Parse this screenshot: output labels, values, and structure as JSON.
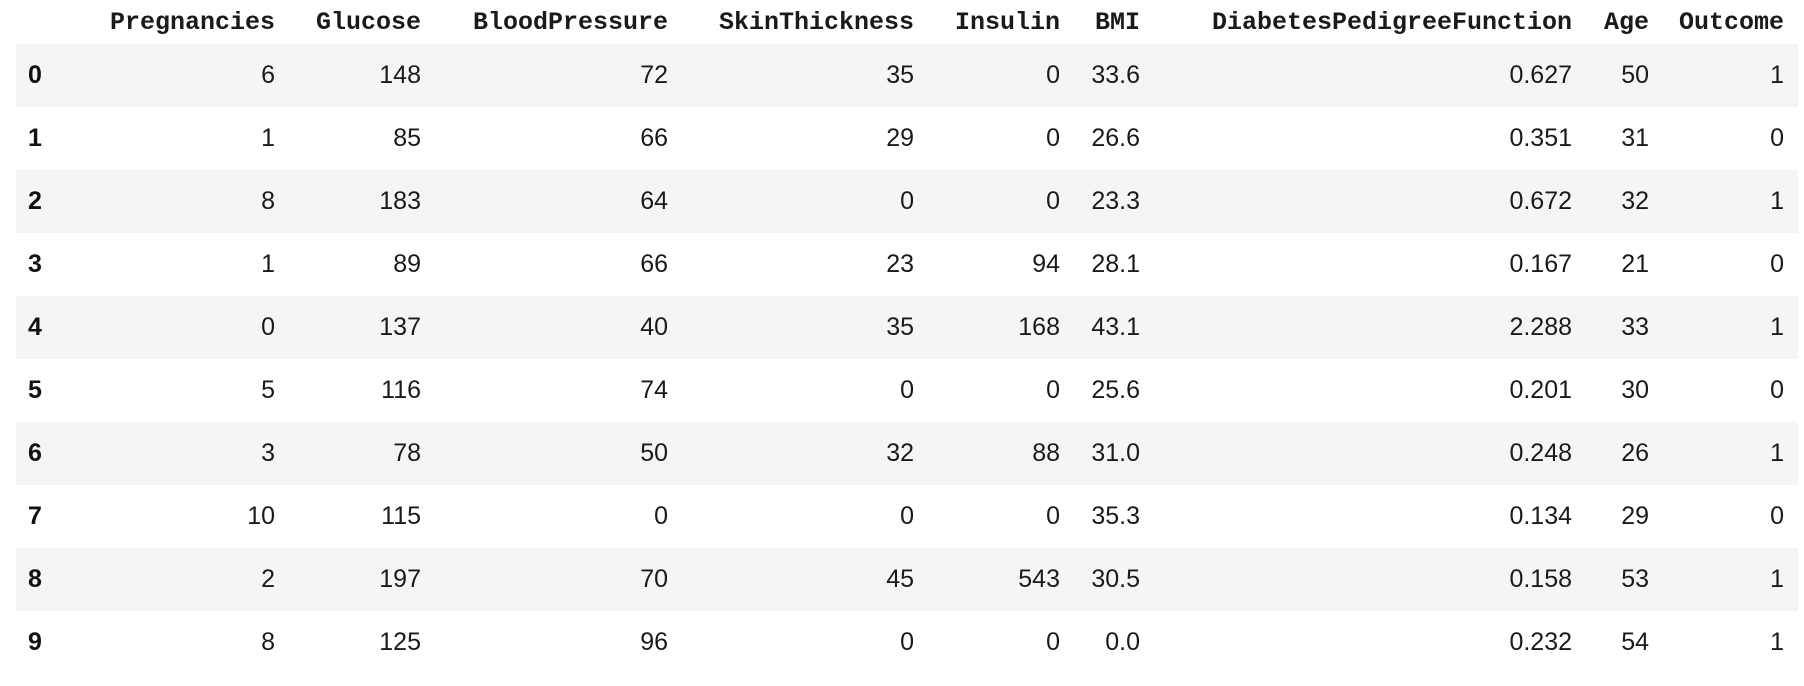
{
  "dataframe": {
    "index_header": "",
    "columns": [
      "Pregnancies",
      "Glucose",
      "BloodPressure",
      "SkinThickness",
      "Insulin",
      "BMI",
      "DiabetesPedigreeFunction",
      "Age",
      "Outcome"
    ],
    "rows": [
      {
        "index": "0",
        "values": [
          "6",
          "148",
          "72",
          "35",
          "0",
          "33.6",
          "0.627",
          "50",
          "1"
        ]
      },
      {
        "index": "1",
        "values": [
          "1",
          "85",
          "66",
          "29",
          "0",
          "26.6",
          "0.351",
          "31",
          "0"
        ]
      },
      {
        "index": "2",
        "values": [
          "8",
          "183",
          "64",
          "0",
          "0",
          "23.3",
          "0.672",
          "32",
          "1"
        ]
      },
      {
        "index": "3",
        "values": [
          "1",
          "89",
          "66",
          "23",
          "94",
          "28.1",
          "0.167",
          "21",
          "0"
        ]
      },
      {
        "index": "4",
        "values": [
          "0",
          "137",
          "40",
          "35",
          "168",
          "43.1",
          "2.288",
          "33",
          "1"
        ]
      },
      {
        "index": "5",
        "values": [
          "5",
          "116",
          "74",
          "0",
          "0",
          "25.6",
          "0.201",
          "30",
          "0"
        ]
      },
      {
        "index": "6",
        "values": [
          "3",
          "78",
          "50",
          "32",
          "88",
          "31.0",
          "0.248",
          "26",
          "1"
        ]
      },
      {
        "index": "7",
        "values": [
          "10",
          "115",
          "0",
          "0",
          "0",
          "35.3",
          "0.134",
          "29",
          "0"
        ]
      },
      {
        "index": "8",
        "values": [
          "2",
          "197",
          "70",
          "45",
          "543",
          "30.5",
          "0.158",
          "53",
          "1"
        ]
      },
      {
        "index": "9",
        "values": [
          "8",
          "125",
          "96",
          "0",
          "0",
          "0.0",
          "0.232",
          "54",
          "1"
        ]
      }
    ]
  },
  "colors": {
    "stripe": "#f5f5f5",
    "background": "#ffffff",
    "text": "#111111"
  }
}
